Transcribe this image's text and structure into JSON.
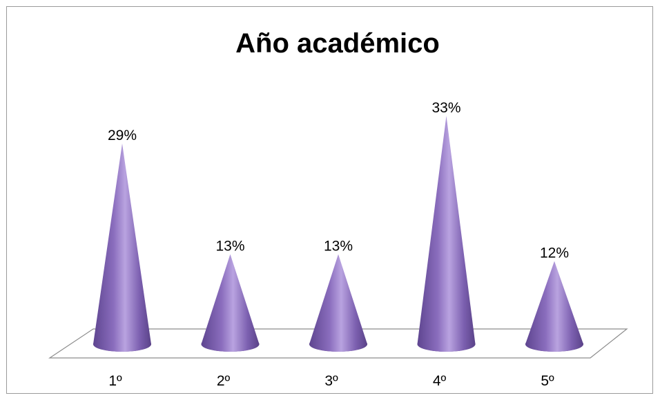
{
  "chart_data": {
    "type": "bar",
    "shape": "cone",
    "title": "Año académico",
    "categories": [
      "1º",
      "2º",
      "3º",
      "4º",
      "5º"
    ],
    "values": [
      29,
      13,
      13,
      33,
      12
    ],
    "data_labels": [
      "29%",
      "13%",
      "13%",
      "33%",
      "12%"
    ],
    "unit": "%",
    "ylim": [
      0,
      33
    ],
    "grid": false,
    "legend": "none",
    "colors": {
      "cone_dark": "#6a4f9a",
      "cone_mid": "#8a6dbd",
      "cone_light": "#b9a3e0",
      "floor_stroke": "#8c8c8c"
    }
  }
}
